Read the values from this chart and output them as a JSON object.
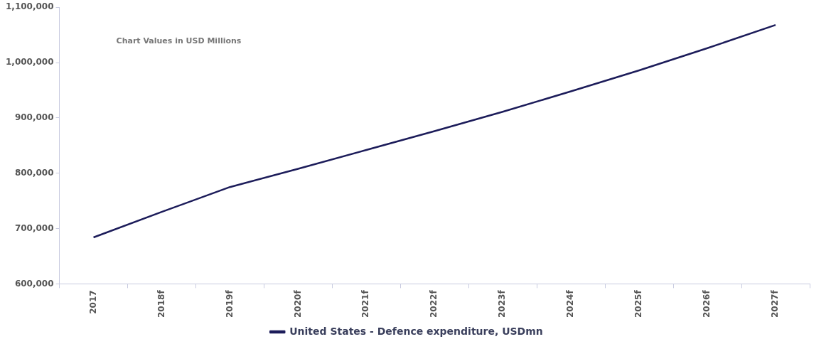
{
  "chart_data": {
    "type": "line",
    "annotations": [
      "Chart Values in USD Millions"
    ],
    "categories": [
      "2017",
      "2018f",
      "2019f",
      "2020f",
      "2021f",
      "2022f",
      "2023f",
      "2024f",
      "2025f",
      "2026f",
      "2027f"
    ],
    "series": [
      {
        "name": "United States - Defence expenditure, USDmn",
        "color": "#1c1c5a",
        "values": [
          684000,
          730000,
          775000,
          808000,
          842000,
          876000,
          911000,
          948000,
          986000,
          1026000,
          1068000
        ]
      }
    ],
    "ylim": [
      600000,
      1100000
    ],
    "yticks": [
      {
        "value": 600000,
        "label": "600,000"
      },
      {
        "value": 700000,
        "label": "700,000"
      },
      {
        "value": 800000,
        "label": "800,000"
      },
      {
        "value": 900000,
        "label": "900,000"
      },
      {
        "value": 1000000,
        "label": "1,000,000"
      },
      {
        "value": 1100000,
        "label": "1,100,000"
      }
    ],
    "grid": false,
    "legend": "bottom",
    "marker": "none",
    "line_style": "solid"
  }
}
